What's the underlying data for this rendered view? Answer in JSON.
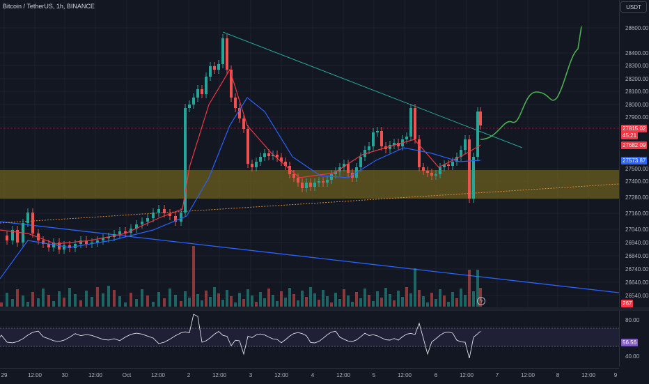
{
  "header": {
    "symbol_title": "Bitcoin / TetherUS, 1h, BINANCE",
    "currency_button": "USDT"
  },
  "price_axis": {
    "ticks": [
      "28600.00",
      "28400.00",
      "28300.00",
      "28200.00",
      "28100.00",
      "28000.00",
      "27900.00",
      "27500.00",
      "27400.00",
      "27280.00",
      "27160.00",
      "27040.00",
      "26940.00",
      "26840.00",
      "26740.00",
      "26640.00",
      "26540.00"
    ],
    "tags": [
      {
        "label": "27815.02",
        "color": "#f23645"
      },
      {
        "label": "45:21",
        "color": "#f23645"
      },
      {
        "label": "27682.09",
        "color": "#f23645"
      },
      {
        "label": "27573.87",
        "color": "#2962ff"
      },
      {
        "label": "267",
        "color": "#f23645"
      }
    ]
  },
  "rsi_axis": {
    "ticks": [
      "80.00",
      "40.00"
    ],
    "tag": {
      "label": "56.56",
      "color": "#7e57c2"
    }
  },
  "time_axis": {
    "labels": [
      "29",
      "12:00",
      "30",
      "12:00",
      "Oct",
      "12:00",
      "2",
      "12:00",
      "3",
      "12:00",
      "4",
      "12:00",
      "5",
      "12:00",
      "6",
      "12:00",
      "7",
      "12:00",
      "8",
      "12:00",
      "9"
    ]
  },
  "colors": {
    "up": "#26a69a",
    "down": "#ef5350",
    "zone": "#6b5f1f",
    "ma_fast": "#f23645",
    "ma_slow": "#2962ff",
    "projection": "#4caf50",
    "trendline_top": "#26a69a",
    "trendline_bottom": "#2962ff"
  },
  "icons": [
    "lightning-icon"
  ]
}
